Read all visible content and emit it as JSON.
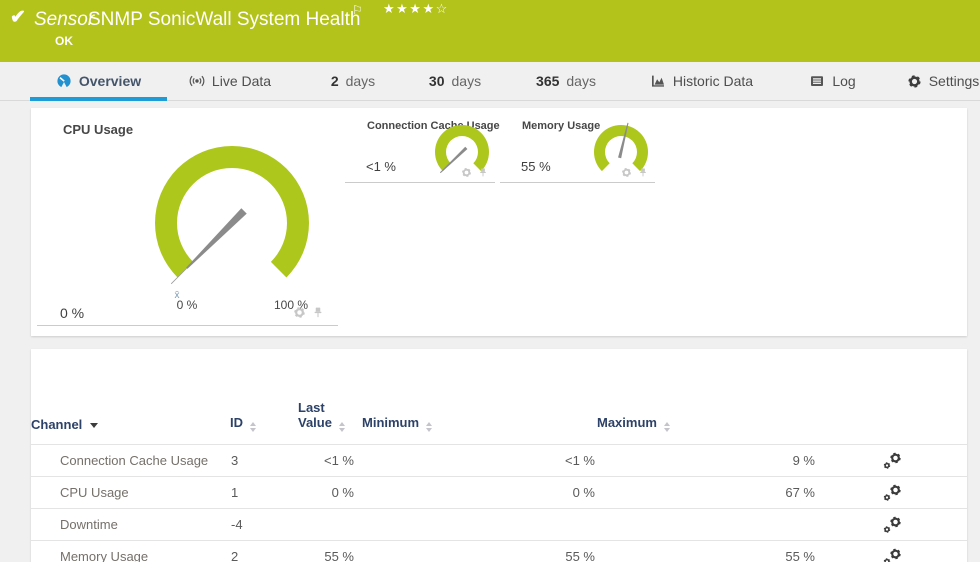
{
  "banner": {
    "check": "✔",
    "kind": "Sensor",
    "title": "SNMP SonicWall System Health",
    "flag": "⚐",
    "stars": "★★★★☆",
    "status": "OK"
  },
  "tabs": {
    "overview": "Overview",
    "live_data": "Live Data",
    "d2_num": "2",
    "d2_unit": "days",
    "d30_num": "30",
    "d30_unit": "days",
    "d365_num": "365",
    "d365_unit": "days",
    "historic": "Historic Data",
    "log": "Log",
    "settings": "Settings"
  },
  "gauges": [
    {
      "title": "CPU Usage",
      "value": "0 %",
      "percent": 0,
      "min_label": "0 %",
      "max_label": "100 %",
      "avg_marker": "x̄"
    },
    {
      "title": "Connection Cache Usage",
      "value": "<1 %",
      "percent": 0.5
    },
    {
      "title": "Memory Usage",
      "value": "55 %",
      "percent": 55
    }
  ],
  "table": {
    "headers": {
      "channel": "Channel",
      "id": "ID",
      "last1": "Last",
      "last2": "Value",
      "min": "Minimum",
      "max": "Maximum"
    },
    "rows": [
      {
        "channel": "Connection Cache Usage",
        "id": "3",
        "last_value": "<1 %",
        "minimum": "<1 %",
        "maximum": "9 %"
      },
      {
        "channel": "CPU Usage",
        "id": "1",
        "last_value": "0 %",
        "minimum": "0 %",
        "maximum": "67 %"
      },
      {
        "channel": "Downtime",
        "id": "-4",
        "last_value": "",
        "minimum": "",
        "maximum": ""
      },
      {
        "channel": "Memory Usage",
        "id": "2",
        "last_value": "55 %",
        "minimum": "55 %",
        "maximum": "55 %"
      }
    ]
  },
  "colors": {
    "banner_green": "#b3c31c",
    "gauge_green": "#aec71d",
    "active_tab_blue": "#1e9cd8",
    "header_navy": "#2d4268"
  },
  "chart_data": [
    {
      "type": "gauge",
      "title": "CPU Usage",
      "value": 0,
      "unit": "%",
      "min": 0,
      "max": 100,
      "value_label": "0 %"
    },
    {
      "type": "gauge",
      "title": "Connection Cache Usage",
      "value": 0.5,
      "unit": "%",
      "min": 0,
      "max": 100,
      "value_label": "<1 %"
    },
    {
      "type": "gauge",
      "title": "Memory Usage",
      "value": 55,
      "unit": "%",
      "min": 0,
      "max": 100,
      "value_label": "55 %"
    }
  ]
}
